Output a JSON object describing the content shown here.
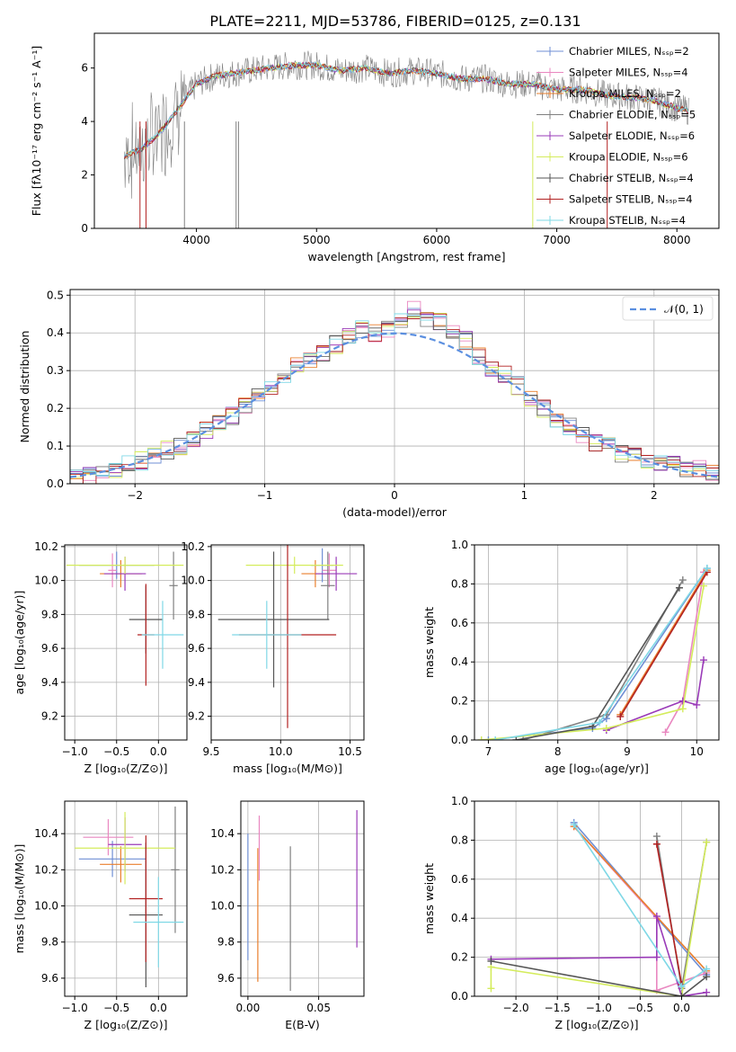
{
  "title": "PLATE=2211, MJD=53786, FIBERID=0125, z=0.131",
  "colors": [
    "#6f8fd4",
    "#e987c0",
    "#e97f2c",
    "#808080",
    "#9a3bb8",
    "#d4ec5c",
    "#555555",
    "#b22222",
    "#7fd8e6"
  ],
  "chart_data": [
    {
      "id": "spectrum",
      "type": "line",
      "xlabel": "wavelength [Angstrom, rest frame]",
      "ylabel": "Flux [fλ10⁻¹⁷ erg cm⁻² s⁻¹ A⁻¹]",
      "xlim": [
        3150,
        8350
      ],
      "ylim": [
        0,
        7.3
      ],
      "xticks": [
        "4000",
        "5000",
        "6000",
        "7000",
        "8000"
      ],
      "yticks": [
        "0",
        "2",
        "4",
        "6"
      ],
      "legend_placement": "top-right",
      "legend": [
        "Chabrier MILES, Nₛₛₚ=2",
        "Salpeter MILES, Nₛₛₚ=4",
        "Kroupa MILES, Nₛₛₚ=2",
        "Chabrier ELODIE, Nₛₛₚ=5",
        "Salpeter ELODIE, Nₛₛₚ=6",
        "Kroupa ELODIE, Nₛₛₚ=6",
        "Chabrier STELIB, Nₛₛₚ=4",
        "Salpeter STELIB, Nₛₛₚ=4",
        "Kroupa STELIB, Nₛₛₚ=4"
      ],
      "x": [
        3400,
        3550,
        3700,
        3850,
        4000,
        4150,
        4300,
        4450,
        4600,
        4800,
        5000,
        5200,
        5400,
        5600,
        5800,
        6000,
        6200,
        6400,
        6600,
        6800,
        7000,
        7200,
        7400,
        7600,
        7800,
        8000,
        8100
      ],
      "y": [
        2.7,
        3.0,
        3.6,
        4.5,
        5.4,
        5.7,
        5.8,
        5.9,
        6.0,
        6.1,
        6.1,
        5.9,
        6.0,
        5.8,
        5.9,
        5.8,
        5.6,
        5.6,
        5.4,
        5.4,
        5.2,
        5.2,
        5.0,
        4.9,
        4.8,
        4.5,
        4.4
      ]
    },
    {
      "id": "residuals",
      "type": "line",
      "xlabel": "(data-model)/error",
      "ylabel": "Normed distribution",
      "xlim": [
        -2.5,
        2.5
      ],
      "ylim": [
        0,
        0.515
      ],
      "xticks": [
        "−2",
        "−1",
        "0",
        "1",
        "2"
      ],
      "yticks": [
        "0.0",
        "0.1",
        "0.2",
        "0.3",
        "0.4",
        "0.5"
      ],
      "legend": [
        "𝒩(0, 1)"
      ],
      "legend_placement": "top-right",
      "bin_edges": [
        -2.5,
        -2.4,
        -2.3,
        -2.2,
        -2.1,
        -2.0,
        -1.9,
        -1.8,
        -1.7,
        -1.6,
        -1.5,
        -1.4,
        -1.3,
        -1.2,
        -1.1,
        -1.0,
        -0.9,
        -0.8,
        -0.7,
        -0.6,
        -0.5,
        -0.4,
        -0.3,
        -0.2,
        -0.1,
        0.0,
        0.1,
        0.2,
        0.3,
        0.4,
        0.5,
        0.6,
        0.7,
        0.8,
        0.9,
        1.0,
        1.1,
        1.2,
        1.3,
        1.4,
        1.5,
        1.6,
        1.7,
        1.8,
        1.9,
        2.0,
        2.1,
        2.2,
        2.3,
        2.4,
        2.5
      ],
      "series": [
        {
          "values": [
            0.02,
            0.02,
            0.03,
            0.04,
            0.05,
            0.06,
            0.07,
            0.09,
            0.1,
            0.12,
            0.14,
            0.16,
            0.18,
            0.21,
            0.23,
            0.26,
            0.29,
            0.31,
            0.33,
            0.35,
            0.37,
            0.39,
            0.41,
            0.4,
            0.41,
            0.43,
            0.46,
            0.44,
            0.43,
            0.41,
            0.38,
            0.34,
            0.31,
            0.29,
            0.26,
            0.23,
            0.2,
            0.17,
            0.15,
            0.13,
            0.11,
            0.1,
            0.08,
            0.07,
            0.06,
            0.05,
            0.05,
            0.04,
            0.04,
            0.03
          ]
        }
      ],
      "normal_curve": {
        "mean": 0,
        "sigma": 1
      }
    },
    {
      "id": "age_vs_Z",
      "type": "scatter",
      "xlabel": "Z [log₁₀(Z/Z⊙)]",
      "ylabel": "age  [log₁₀(age/yr)]",
      "xlim": [
        -1.12,
        0.34
      ],
      "ylim": [
        9.06,
        10.21
      ],
      "xticks": [
        "−1.0",
        "−0.5",
        "0.0"
      ],
      "yticks": [
        "9.2",
        "9.4",
        "9.6",
        "9.8",
        "10.0",
        "10.2"
      ],
      "points": [
        {
          "x": -0.5,
          "y": 10.09,
          "xerr": 0.45,
          "yerr": 0.08
        },
        {
          "x": -0.55,
          "y": 10.06,
          "xerr": 0.05,
          "yerr": 0.1
        },
        {
          "x": -0.45,
          "y": 10.04,
          "xerr": 0.25,
          "yerr": 0.08
        },
        {
          "x": 0.18,
          "y": 9.97,
          "xerr": 0.05,
          "yerr": 0.2
        },
        {
          "x": -0.4,
          "y": 10.04,
          "xerr": 0.25,
          "yerr": 0.1
        },
        {
          "x": -0.4,
          "y": 10.09,
          "xerr": 0.7,
          "yerr": 0.05
        },
        {
          "x": -0.15,
          "y": 9.77,
          "xerr": 0.2,
          "yerr": 0.2
        },
        {
          "x": -0.15,
          "y": 9.68,
          "xerr": 0.1,
          "yerr": 0.3
        },
        {
          "x": 0.05,
          "y": 9.68,
          "xerr": 0.25,
          "yerr": 0.2
        }
      ]
    },
    {
      "id": "age_vs_mass",
      "type": "scatter",
      "xlabel": "mass [log₁₀(M/M⊙)]",
      "ylabel": "",
      "xlim": [
        9.5,
        10.6
      ],
      "ylim": [
        9.06,
        10.21
      ],
      "xticks": [
        "9.5",
        "10.0",
        "10.5"
      ],
      "yticks": [
        "9.2",
        "9.4",
        "9.6",
        "9.8",
        "10.0",
        "10.2"
      ],
      "points": [
        {
          "x": 10.3,
          "y": 10.09,
          "xerr": 0.08,
          "yerr": 0.1
        },
        {
          "x": 10.35,
          "y": 10.06,
          "xerr": 0.05,
          "yerr": 0.1
        },
        {
          "x": 10.25,
          "y": 10.04,
          "xerr": 0.1,
          "yerr": 0.08
        },
        {
          "x": 10.34,
          "y": 9.97,
          "xerr": 0.05,
          "yerr": 0.2
        },
        {
          "x": 10.4,
          "y": 10.04,
          "xerr": 0.15,
          "yerr": 0.1
        },
        {
          "x": 10.1,
          "y": 10.09,
          "xerr": 0.35,
          "yerr": 0.05
        },
        {
          "x": 9.95,
          "y": 9.77,
          "xerr": 0.4,
          "yerr": 0.4
        },
        {
          "x": 10.05,
          "y": 9.68,
          "xerr": 0.35,
          "yerr": 0.55
        },
        {
          "x": 9.9,
          "y": 9.68,
          "xerr": 0.25,
          "yerr": 0.2
        }
      ]
    },
    {
      "id": "massweight_vs_age",
      "type": "line",
      "xlabel": "age  [log₁₀(age/yr)]",
      "ylabel": "mass weight",
      "xlim": [
        6.8,
        10.32
      ],
      "ylim": [
        0,
        1.0
      ],
      "xticks": [
        "7",
        "8",
        "9",
        "10"
      ],
      "yticks": [
        "0.0",
        "0.2",
        "0.4",
        "0.6",
        "0.8",
        "1.0"
      ],
      "series": [
        {
          "x": [
            7.0,
            8.5,
            8.7,
            10.15
          ],
          "y": [
            0.0,
            0.06,
            0.11,
            0.88
          ]
        },
        {
          "x": [
            9.55,
            9.8,
            10.1
          ],
          "y": [
            0.04,
            0.2,
            0.86
          ]
        },
        {
          "x": [
            8.9,
            10.15
          ],
          "y": [
            0.13,
            0.87
          ]
        },
        {
          "x": [
            7.5,
            8.7,
            9.8
          ],
          "y": [
            0.0,
            0.13,
            0.82
          ]
        },
        {
          "x": [
            8.7,
            9.8,
            10.0,
            10.1
          ],
          "y": [
            0.05,
            0.2,
            0.18,
            0.41
          ]
        },
        {
          "x": [
            6.9,
            8.7,
            9.8,
            10.1
          ],
          "y": [
            0.0,
            0.06,
            0.16,
            0.79
          ]
        },
        {
          "x": [
            7.4,
            8.5,
            9.75
          ],
          "y": [
            0.0,
            0.07,
            0.78
          ]
        },
        {
          "x": [
            8.9,
            10.15
          ],
          "y": [
            0.12,
            0.86
          ]
        },
        {
          "x": [
            7.1,
            8.6,
            10.15
          ],
          "y": [
            0.0,
            0.09,
            0.88
          ]
        }
      ]
    },
    {
      "id": "mass_vs_Z",
      "type": "scatter",
      "xlabel": "Z [log₁₀(Z/Z⊙)]",
      "ylabel": "mass [log₁₀(M/M⊙)]",
      "xlim": [
        -1.12,
        0.34
      ],
      "ylim": [
        9.5,
        10.58
      ],
      "xticks": [
        "−1.0",
        "−0.5",
        "0.0"
      ],
      "yticks": [
        "9.6",
        "9.8",
        "10.0",
        "10.2",
        "10.4"
      ],
      "points": [
        {
          "x": -0.55,
          "y": 10.26,
          "xerr": 0.4,
          "yerr": 0.1
        },
        {
          "x": -0.6,
          "y": 10.38,
          "xerr": 0.3,
          "yerr": 0.1
        },
        {
          "x": -0.45,
          "y": 10.23,
          "xerr": 0.25,
          "yerr": 0.1
        },
        {
          "x": 0.2,
          "y": 10.2,
          "xerr": 0.05,
          "yerr": 0.35
        },
        {
          "x": -0.4,
          "y": 10.34,
          "xerr": 0.2,
          "yerr": 0.15
        },
        {
          "x": -0.4,
          "y": 10.32,
          "xerr": 0.6,
          "yerr": 0.2
        },
        {
          "x": -0.15,
          "y": 9.95,
          "xerr": 0.2,
          "yerr": 0.4
        },
        {
          "x": -0.15,
          "y": 10.04,
          "xerr": 0.2,
          "yerr": 0.35
        },
        {
          "x": 0.0,
          "y": 9.91,
          "xerr": 0.3,
          "yerr": 0.25
        }
      ]
    },
    {
      "id": "mass_vs_EBV",
      "type": "scatter",
      "xlabel": "E(B-V)",
      "ylabel": "",
      "xlim": [
        -0.005,
        0.082
      ],
      "ylim": [
        9.5,
        10.58
      ],
      "xticks": [
        "0.00",
        "0.05"
      ],
      "yticks": [
        "9.6",
        "9.8",
        "10.0",
        "10.2",
        "10.4"
      ],
      "points": [
        {
          "x": 0.0,
          "y": 10.05,
          "yerr": 0.35
        },
        {
          "x": 0.008,
          "y": 10.32,
          "yerr": 0.18
        },
        {
          "x": 0.007,
          "y": 9.95,
          "yerr": 0.37
        },
        {
          "x": 0.03,
          "y": 9.93,
          "yerr": 0.4
        },
        {
          "x": 0.077,
          "y": 10.15,
          "yerr": 0.38
        }
      ]
    },
    {
      "id": "massweight_vs_Z",
      "type": "line",
      "xlabel": "Z [log₁₀(Z/Z⊙)]",
      "ylabel": "mass weight",
      "xlim": [
        -2.5,
        0.45
      ],
      "ylim": [
        0,
        1.0
      ],
      "xticks": [
        "−2.0",
        "−1.5",
        "−1.0",
        "−0.5",
        "0.0"
      ],
      "yticks": [
        "0.0",
        "0.2",
        "0.4",
        "0.6",
        "0.8",
        "1.0"
      ],
      "series": [
        {
          "x": [
            -1.3,
            0.3
          ],
          "y": [
            0.89,
            0.11
          ]
        },
        {
          "x": [
            -1.3,
            -0.3,
            -0.3,
            0.3
          ],
          "y": [
            0.87,
            0.4,
            0.03,
            0.12
          ]
        },
        {
          "x": [
            -1.3,
            0.3
          ],
          "y": [
            0.87,
            0.13
          ]
        },
        {
          "x": [
            -0.3,
            0.0,
            0.3
          ],
          "y": [
            0.82,
            0.04,
            0.79
          ]
        },
        {
          "x": [
            -2.3,
            -0.3,
            -0.3,
            0.0,
            0.3
          ],
          "y": [
            0.19,
            0.2,
            0.41,
            0.0,
            0.02
          ]
        },
        {
          "x": [
            -2.3,
            -2.3,
            0.0,
            0.3
          ],
          "y": [
            0.04,
            0.15,
            0.0,
            0.79
          ]
        },
        {
          "x": [
            -2.3,
            0.0,
            0.3
          ],
          "y": [
            0.18,
            0.0,
            0.1
          ]
        },
        {
          "x": [
            -0.3,
            0.0
          ],
          "y": [
            0.78,
            0.06
          ]
        },
        {
          "x": [
            -1.3,
            0.0,
            0.3
          ],
          "y": [
            0.88,
            0.05,
            0.14
          ]
        }
      ]
    }
  ]
}
